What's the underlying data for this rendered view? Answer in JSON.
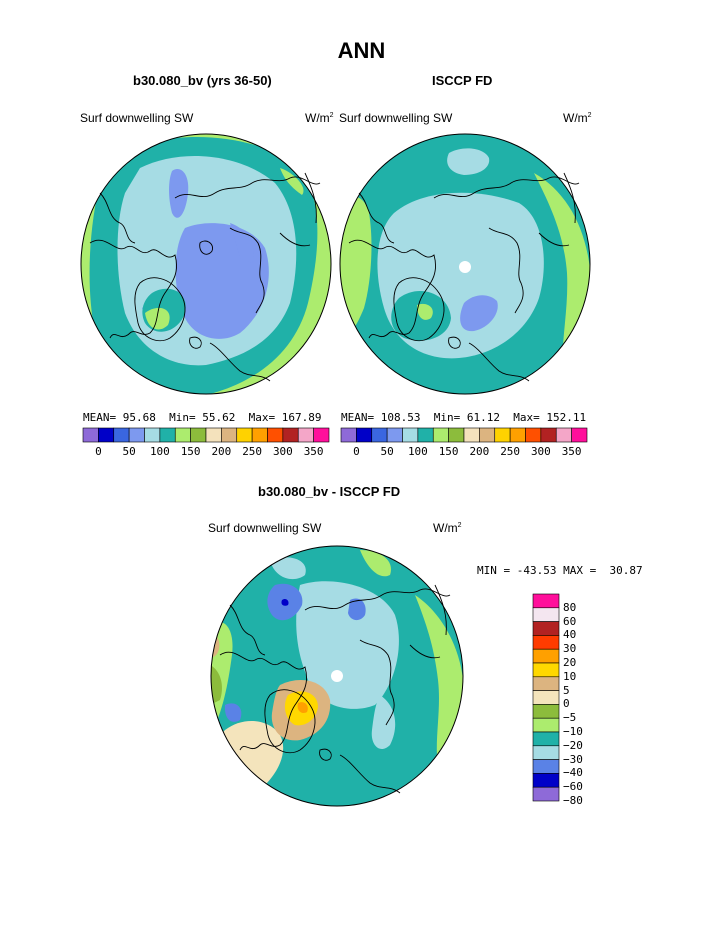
{
  "title": "ANN",
  "panels": [
    {
      "case": "b30.080_bv (yrs 36-50)",
      "variable": "Surf downwelling SW",
      "units_base": "W/m",
      "units_exp": "2",
      "stats": {
        "mean_label": "MEAN=",
        "mean": "95.68",
        "min_label": "Min=",
        "min": "55.62",
        "max_label": "Max=",
        "max": "167.89"
      }
    },
    {
      "case": "ISCCP FD",
      "variable": "Surf downwelling SW",
      "units_base": "W/m",
      "units_exp": "2",
      "stats": {
        "mean_label": "MEAN=",
        "mean": "108.53",
        "min_label": "Min=",
        "min": "61.12",
        "max_label": "Max=",
        "max": "152.11"
      }
    }
  ],
  "colorbar_top": {
    "colors": [
      "#8e6ad8",
      "#0000c8",
      "#3a66e0",
      "#7d99ef",
      "#a6dce4",
      "#20b1a8",
      "#acec6e",
      "#8cbc3c",
      "#f4e2bc",
      "#dcb480",
      "#ffd200",
      "#ffa000",
      "#ff5000",
      "#b22222",
      "#f4a6c8",
      "#ff0f9b"
    ],
    "tick_labels": [
      "0",
      "50",
      "100",
      "150",
      "200",
      "250",
      "300",
      "350"
    ]
  },
  "difference": {
    "title": "b30.080_bv - ISCCP FD",
    "variable": "Surf downwelling SW",
    "units_base": "W/m",
    "units_exp": "2",
    "stats": "MIN = -43.53 MAX =  30.87",
    "legend": {
      "colors": [
        "#ff0f9b",
        "#f4e6f0",
        "#b22222",
        "#ff3c00",
        "#ffa000",
        "#ffd800",
        "#dcb480",
        "#f4e4bc",
        "#8cbc3c",
        "#acec6e",
        "#20b1a8",
        "#a6dce4",
        "#5a82e6",
        "#0000c8",
        "#8e6ad8"
      ],
      "labels": [
        "80",
        "60",
        "40",
        "30",
        "20",
        "10",
        "5",
        "0",
        "−5",
        "−10",
        "−20",
        "−30",
        "−40",
        "−60",
        "−80"
      ]
    }
  },
  "map_colors": {
    "land_border": "#000000",
    "p1": [
      "#acec6e",
      "#20b1a8",
      "#a6dce4",
      "#7d99ef"
    ],
    "p2": [
      "#acec6e",
      "#20b1a8",
      "#a6dce4",
      "#7d99ef"
    ],
    "p3": [
      "#acec6e",
      "#20b1a8",
      "#a6dce4",
      "#5a82e6",
      "#0000c8",
      "#8cbc3c",
      "#f4e4bc",
      "#dcb480",
      "#ffd800",
      "#ffa000"
    ]
  }
}
